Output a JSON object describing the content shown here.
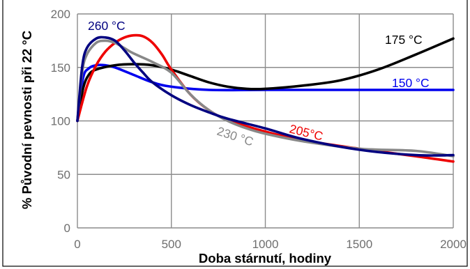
{
  "chart_data": {
    "type": "line",
    "title": "",
    "xlabel": "Doba stárnutí, hodiny",
    "ylabel": "% Původní pevnosti při 22 °C",
    "xlim": [
      0,
      2000
    ],
    "ylim": [
      0,
      200
    ],
    "x_ticks": [
      0,
      500,
      1000,
      1500,
      2000
    ],
    "y_ticks": [
      0,
      50,
      100,
      150,
      200
    ],
    "grid": true,
    "series": [
      {
        "name": "150 °C",
        "color": "#0000ee",
        "x": [
          0,
          30,
          60,
          100,
          150,
          200,
          300,
          400,
          500,
          700,
          1000,
          1500,
          2000
        ],
        "y": [
          100,
          140,
          149,
          152,
          152,
          150,
          143,
          136,
          132,
          129,
          129,
          129,
          129
        ]
      },
      {
        "name": "175 °C",
        "color": "#000000",
        "x": [
          0,
          30,
          60,
          100,
          200,
          300,
          400,
          500,
          600,
          700,
          800,
          900,
          1000,
          1200,
          1400,
          1600,
          1800,
          2000
        ],
        "y": [
          100,
          130,
          143,
          148,
          152,
          153,
          152,
          148,
          142,
          136,
          132,
          130,
          130,
          133,
          138,
          148,
          162,
          177
        ]
      },
      {
        "name": "205°C",
        "color": "#ee0000",
        "x": [
          0,
          50,
          100,
          150,
          200,
          250,
          300,
          350,
          400,
          450,
          500,
          600,
          700,
          800,
          1000,
          1200,
          1500,
          1800,
          2000
        ],
        "y": [
          100,
          132,
          152,
          165,
          173,
          178,
          180,
          179,
          173,
          162,
          148,
          125,
          110,
          101,
          90,
          82,
          74,
          67,
          62
        ]
      },
      {
        "name": "230 °C",
        "color": "#888888",
        "x": [
          0,
          25,
          50,
          100,
          150,
          200,
          250,
          300,
          400,
          500,
          600,
          700,
          800,
          900,
          1000,
          1200,
          1500,
          1800,
          2000
        ],
        "y": [
          100,
          145,
          162,
          173,
          175,
          173,
          168,
          163,
          155,
          145,
          125,
          110,
          100,
          93,
          88,
          81,
          74,
          72,
          67
        ]
      },
      {
        "name": "260 °C",
        "color": "#000080",
        "x": [
          0,
          25,
          50,
          100,
          150,
          200,
          250,
          300,
          350,
          400,
          500,
          600,
          700,
          800,
          1000,
          1200,
          1500,
          1800,
          2000
        ],
        "y": [
          100,
          150,
          168,
          177,
          178,
          175,
          166,
          155,
          145,
          136,
          124,
          115,
          108,
          102,
          93,
          83,
          73,
          68,
          68
        ]
      }
    ]
  }
}
